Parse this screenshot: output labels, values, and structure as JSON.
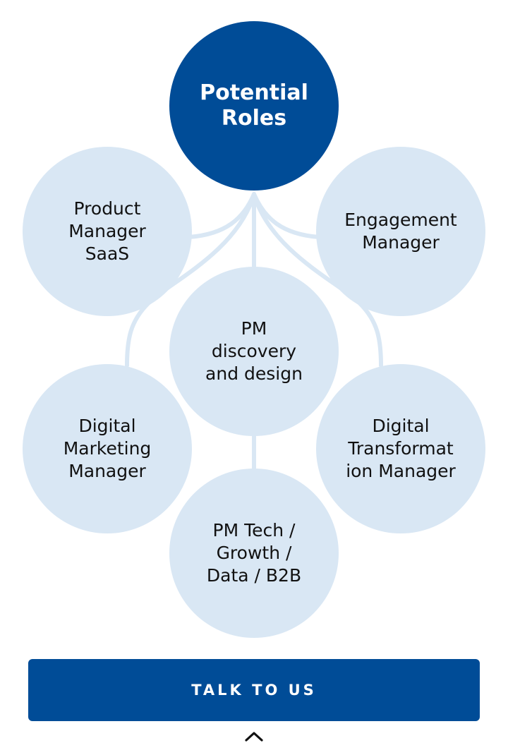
{
  "diagram": {
    "root": {
      "label": "Potential\nRoles"
    },
    "roles": [
      {
        "id": "product",
        "label": "Product\nManager\nSaaS"
      },
      {
        "id": "engage",
        "label": "Engagement\nManager"
      },
      {
        "id": "pmdisc",
        "label": "PM\ndiscovery\nand design"
      },
      {
        "id": "digmkt",
        "label": "Digital\nMarketing\nManager"
      },
      {
        "id": "digtrans",
        "label": "Digital\nTransformat\nion Manager"
      },
      {
        "id": "pmtech",
        "label": "PM Tech /\nGrowth /\nData / B2B"
      }
    ]
  },
  "cta": {
    "label": "TALK TO US"
  },
  "scroll_top": {
    "icon": "chevron-up-icon"
  },
  "colors": {
    "primary": "#004c97",
    "node_fill": "#d9e7f4",
    "connector": "#d9e7f4",
    "text_dark": "#111111",
    "text_light": "#ffffff"
  }
}
